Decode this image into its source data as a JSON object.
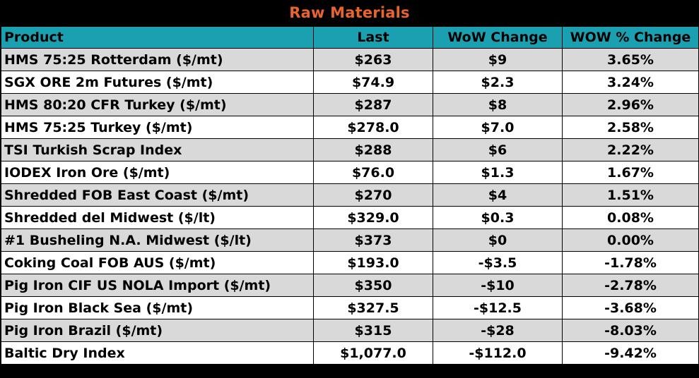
{
  "title": "Raw Materials",
  "colors": {
    "header_bg": "#1aa0b0",
    "title_text": "#e8642c",
    "row_shade": "#d9d9d9",
    "row_plain": "#ffffff"
  },
  "columns": [
    "Product",
    "Last",
    "WoW Change",
    "WOW % Change"
  ],
  "rows": [
    [
      "HMS 75:25 Rotterdam ($/mt)",
      "$263",
      "$9",
      "3.65%"
    ],
    [
      "SGX ORE 2m Futures ($/mt)",
      "$74.9",
      "$2.3",
      "3.24%"
    ],
    [
      "HMS 80:20 CFR Turkey ($/mt)",
      "$287",
      "$8",
      "2.96%"
    ],
    [
      "HMS 75:25 Turkey ($/mt)",
      "$278.0",
      "$7.0",
      "2.58%"
    ],
    [
      "TSI Turkish Scrap Index",
      "$288",
      "$6",
      "2.22%"
    ],
    [
      "IODEX  Iron Ore ($/mt)",
      "$76.0",
      "$1.3",
      "1.67%"
    ],
    [
      "Shredded FOB East Coast ($/mt)",
      "$270",
      "$4",
      "1.51%"
    ],
    [
      "Shredded del  Midwest ($/lt)",
      "$329.0",
      "$0.3",
      "0.08%"
    ],
    [
      "#1 Busheling N.A. Midwest ($/lt)",
      "$373",
      "$0",
      "0.00%"
    ],
    [
      "Coking Coal FOB AUS ($/mt)",
      "$193.0",
      "-$3.5",
      "-1.78%"
    ],
    [
      "Pig Iron CIF US NOLA Import ($/mt)",
      "$350",
      "-$10",
      "-2.78%"
    ],
    [
      "Pig Iron Black Sea ($/mt)",
      "$327.5",
      "-$12.5",
      "-3.68%"
    ],
    [
      "Pig Iron Brazil ($/mt)",
      "$315",
      "-$28",
      "-8.03%"
    ],
    [
      "Baltic Dry Index",
      "$1,077.0",
      "-$112.0",
      "-9.42%"
    ]
  ]
}
